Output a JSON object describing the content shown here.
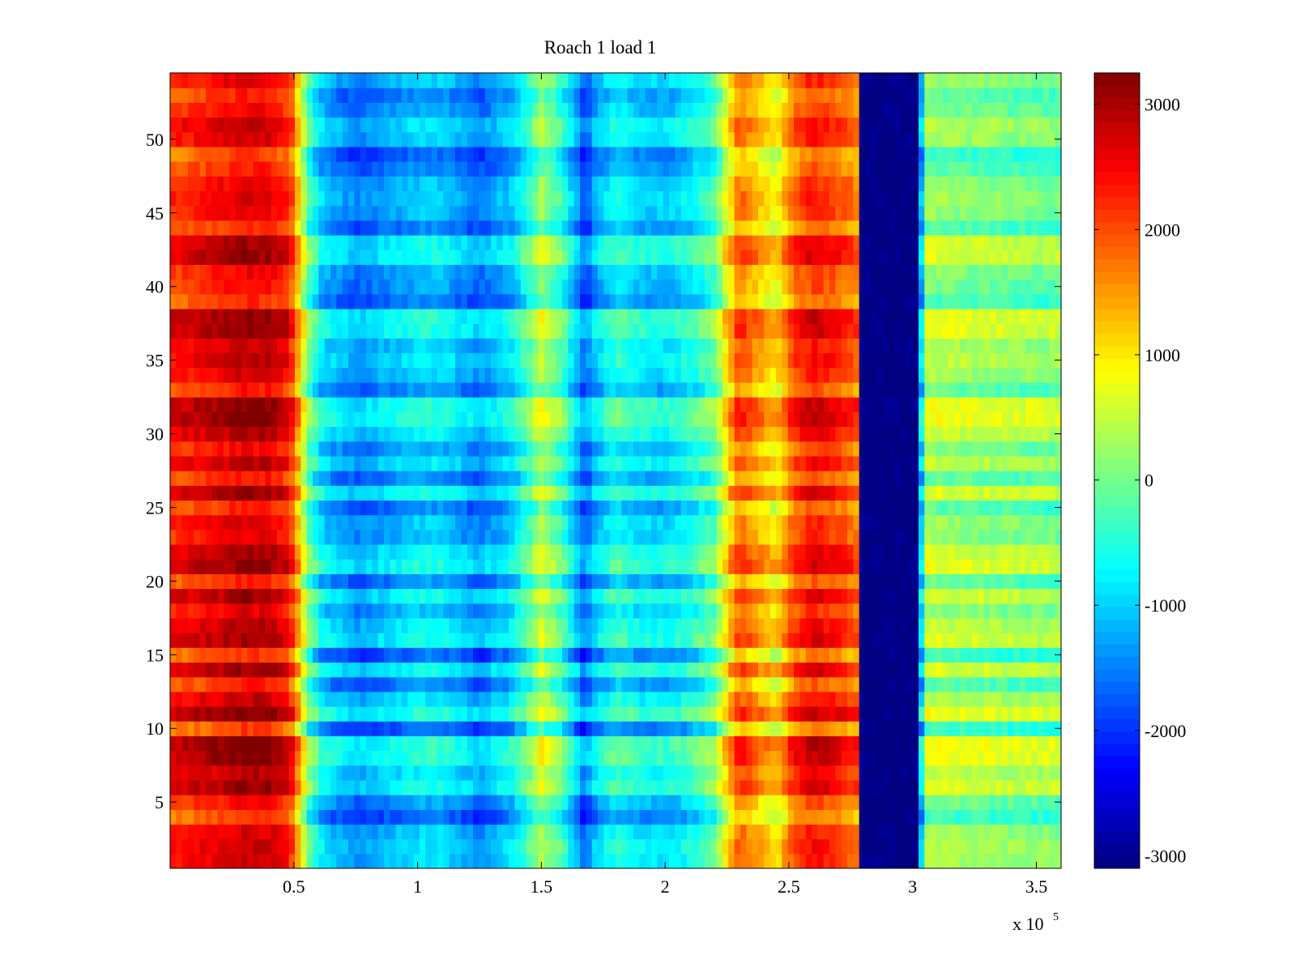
{
  "chart_data": {
    "type": "heatmap",
    "title": "Roach 1 load 1",
    "xlabel": "",
    "ylabel": "",
    "x_scale_label": {
      "prefix": "x 10",
      "exponent": "5"
    },
    "xlim": [
      0,
      3.6
    ],
    "ylim": [
      0.5,
      54.5
    ],
    "x_ticks": [
      0.5,
      1,
      1.5,
      2,
      2.5,
      3,
      3.5
    ],
    "x_tick_labels": [
      "0.5",
      "1",
      "1.5",
      "2",
      "2.5",
      "3",
      "3.5"
    ],
    "y_ticks": [
      5,
      10,
      15,
      20,
      25,
      30,
      35,
      40,
      45,
      50
    ],
    "y_tick_labels": [
      "5",
      "10",
      "15",
      "20",
      "25",
      "30",
      "35",
      "40",
      "45",
      "50"
    ],
    "colormap": "jet",
    "clim": [
      -3100,
      3250
    ],
    "colorbar_ticks": [
      3000,
      2000,
      1000,
      0,
      -1000,
      -2000,
      -3000
    ],
    "colorbar_tick_labels": [
      "3000",
      "2000",
      "1000",
      "0",
      "-1000",
      "-2000",
      "-3000"
    ],
    "rows": 54,
    "column_profile": [
      {
        "x": 0.0,
        "value": 2200
      },
      {
        "x": 0.1,
        "value": 2350
      },
      {
        "x": 0.2,
        "value": 2500
      },
      {
        "x": 0.3,
        "value": 2700
      },
      {
        "x": 0.4,
        "value": 2650
      },
      {
        "x": 0.48,
        "value": 2300
      },
      {
        "x": 0.52,
        "value": 1200
      },
      {
        "x": 0.56,
        "value": -200
      },
      {
        "x": 0.62,
        "value": -1050
      },
      {
        "x": 0.75,
        "value": -1500
      },
      {
        "x": 0.9,
        "value": -1200
      },
      {
        "x": 1.0,
        "value": -1000
      },
      {
        "x": 1.1,
        "value": -1000
      },
      {
        "x": 1.25,
        "value": -1500
      },
      {
        "x": 1.38,
        "value": -1000
      },
      {
        "x": 1.45,
        "value": -300
      },
      {
        "x": 1.5,
        "value": 300
      },
      {
        "x": 1.58,
        "value": -300
      },
      {
        "x": 1.66,
        "value": -1500
      },
      {
        "x": 1.68,
        "value": -1900
      },
      {
        "x": 1.7,
        "value": -1300
      },
      {
        "x": 1.8,
        "value": -600
      },
      {
        "x": 1.9,
        "value": -900
      },
      {
        "x": 2.0,
        "value": -1000
      },
      {
        "x": 2.1,
        "value": -700
      },
      {
        "x": 2.2,
        "value": -200
      },
      {
        "x": 2.25,
        "value": 900
      },
      {
        "x": 2.3,
        "value": 1800
      },
      {
        "x": 2.38,
        "value": 1300
      },
      {
        "x": 2.45,
        "value": 900
      },
      {
        "x": 2.52,
        "value": 1900
      },
      {
        "x": 2.6,
        "value": 2300
      },
      {
        "x": 2.7,
        "value": 2050
      },
      {
        "x": 2.78,
        "value": 1700
      },
      {
        "x": 2.795,
        "value": -3100
      },
      {
        "x": 3.03,
        "value": -3100
      },
      {
        "x": 3.04,
        "value": 300
      },
      {
        "x": 3.2,
        "value": 200
      },
      {
        "x": 3.4,
        "value": 100
      },
      {
        "x": 3.6,
        "value": 50
      }
    ],
    "row_profile": [
      0.15,
      0.25,
      0.05,
      -0.85,
      -0.35,
      0.7,
      0.35,
      0.9,
      0.95,
      -0.9,
      0.85,
      0.25,
      -0.6,
      0.6,
      -0.85,
      0.6,
      0.35,
      -0.1,
      0.6,
      -0.55,
      0.75,
      0.55,
      -0.1,
      0.0,
      -0.6,
      0.65,
      -0.5,
      0.35,
      -0.25,
      0.45,
      0.9,
      0.85,
      -0.5,
      0.1,
      0.35,
      0.15,
      0.75,
      0.8,
      -0.75,
      -0.35,
      -0.2,
      0.65,
      0.55,
      -0.65,
      -0.1,
      0.1,
      -0.1,
      -0.6,
      -0.9,
      0.1,
      0.25,
      -0.3,
      -0.55,
      0.0
    ]
  }
}
